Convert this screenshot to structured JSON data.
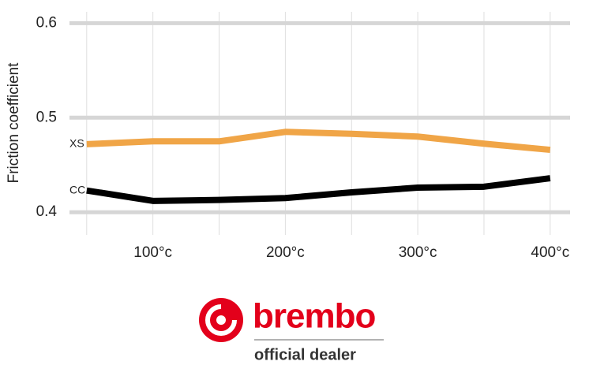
{
  "chart_data": {
    "type": "line",
    "ylabel": "Friction coefficient",
    "x": [
      50,
      100,
      150,
      200,
      250,
      300,
      350,
      400
    ],
    "series": [
      {
        "name": "XS",
        "color": "#f0a547",
        "values": [
          0.472,
          0.475,
          0.475,
          0.485,
          0.483,
          0.48,
          0.4725,
          0.466
        ]
      },
      {
        "name": "CC",
        "color": "#000000",
        "values": [
          0.423,
          0.412,
          0.413,
          0.415,
          0.421,
          0.426,
          0.427,
          0.436
        ]
      }
    ],
    "xlim": [
      37,
      415
    ],
    "xticks": [
      {
        "value": 100,
        "label": "100°c"
      },
      {
        "value": 200,
        "label": "200°c"
      },
      {
        "value": 300,
        "label": "300°c"
      },
      {
        "value": 400,
        "label": "400°c"
      }
    ],
    "xgrid": [
      50,
      100,
      150,
      200,
      250,
      300,
      350,
      400
    ],
    "ylim": [
      0.376,
      0.612
    ],
    "yticks": [
      0.4,
      0.5,
      0.6
    ],
    "grid": true
  },
  "logo": {
    "brand": "brembo",
    "tagline": "official dealer"
  }
}
